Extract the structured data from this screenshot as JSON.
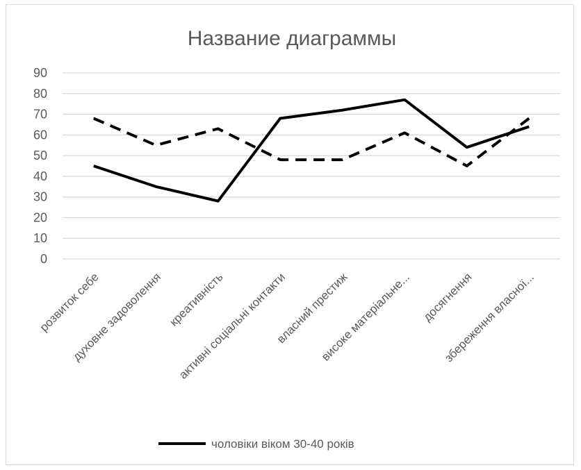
{
  "chart_data": {
    "type": "line",
    "title": "Название диаграммы",
    "xlabel": "",
    "ylabel": "",
    "ylim": [
      0,
      90
    ],
    "yticks": [
      0,
      10,
      20,
      30,
      40,
      50,
      60,
      70,
      80,
      90
    ],
    "grid": true,
    "legend_position": "bottom",
    "categories": [
      "розвиток себе",
      "духовне задоволення",
      "креативність",
      "активні соціальні контакти",
      "власний престиж",
      "високе матеріальне...",
      "досягнення",
      "збереження власної..."
    ],
    "series": [
      {
        "name": "чоловіки віком 30-40 років",
        "style": "solid",
        "color": "#000000",
        "values": [
          45,
          35,
          28,
          68,
          72,
          77,
          54,
          64
        ]
      },
      {
        "style": "dashed",
        "color": "#000000",
        "values": [
          68,
          55,
          63,
          48,
          48,
          61,
          45,
          68
        ]
      }
    ],
    "grid_color": "#d9d9d9",
    "text_color": "#595959"
  }
}
